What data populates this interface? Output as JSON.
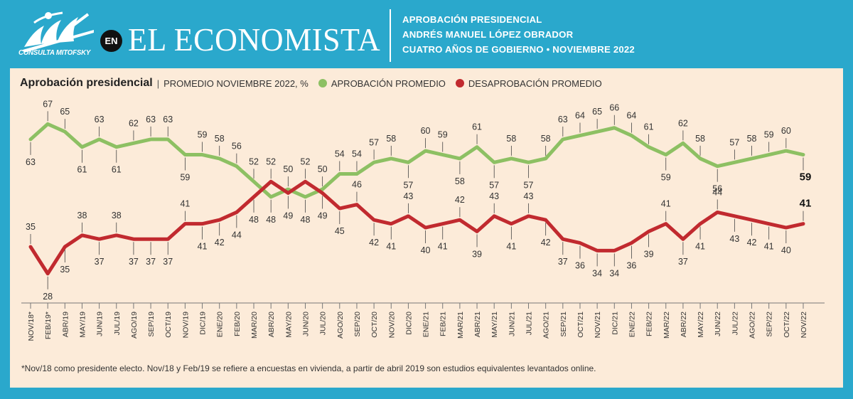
{
  "header": {
    "logo_text": "CONSULTA MITOFSKY",
    "en_badge": "EN",
    "brand": "EL ECONOMISTA",
    "line1": "APROBACIÓN PRESIDENCIAL",
    "line2": "ANDRÉS MANUEL LÓPEZ OBRADOR",
    "line3": "CUATRO AÑOS DE GOBIERNO • NOVIEMBRE 2022"
  },
  "colors": {
    "frame": "#2aa8cc",
    "panel": "#fcebd9",
    "approval": "#8dc063",
    "disapproval": "#c12a2f"
  },
  "chart_data": {
    "type": "line",
    "title": "Aprobación presidencial",
    "subtitle": "PROMEDIO NOVIEMBRE 2022, %",
    "legend_placement": "top-left",
    "grid": false,
    "categories": [
      "NOV/18*",
      "FEB/19*",
      "ABR/19",
      "MAY/19",
      "JUN/19",
      "JUL/19",
      "AGO/19",
      "SEP/19",
      "OCT/19",
      "NOV/19",
      "DIC/19",
      "ENE/20",
      "FEB/20",
      "MAR/20",
      "ABR/20",
      "MAY/20",
      "JUN/20",
      "JUL/20",
      "AGO/20",
      "SEP/20",
      "OCT/20",
      "NOV/20",
      "DIC/20",
      "ENE/21",
      "FEB/21",
      "MAR/21",
      "ABR/21",
      "MAY/21",
      "JUN/21",
      "JUL/21",
      "AGO/21",
      "SEP/21",
      "OCT/21",
      "NOV/21",
      "DIC/21",
      "ENE/22",
      "FEB/22",
      "MAR/22",
      "ABR/22",
      "MAY/22",
      "JUN/22",
      "JUL/22",
      "AGO/22",
      "SEP/22",
      "OCT/22",
      "NOV/22"
    ],
    "series": [
      {
        "name": "APROBACIÓN PROMEDIO",
        "color": "#8dc063",
        "values": [
          63,
          67,
          65,
          61,
          63,
          61,
          62,
          63,
          63,
          59,
          59,
          58,
          56,
          52,
          48,
          50,
          48,
          50,
          54,
          54,
          57,
          58,
          57,
          60,
          59,
          58,
          61,
          57,
          58,
          57,
          58,
          63,
          64,
          65,
          66,
          64,
          61,
          59,
          62,
          58,
          56,
          57,
          58,
          59,
          60,
          59
        ]
      },
      {
        "name": "DESAPROBACIÓN PROMEDIO",
        "color": "#c12a2f",
        "values": [
          35,
          28,
          35,
          38,
          37,
          38,
          37,
          37,
          37,
          41,
          41,
          42,
          44,
          48,
          52,
          49,
          52,
          49,
          45,
          46,
          42,
          41,
          43,
          40,
          41,
          42,
          39,
          43,
          41,
          43,
          42,
          37,
          36,
          34,
          34,
          36,
          39,
          41,
          37,
          41,
          44,
          43,
          42,
          41,
          40,
          41
        ]
      }
    ],
    "ylim": [
      20,
      75
    ]
  },
  "footnote": "*Nov/18 como presidente electo. Nov/18 y Feb/19 se refiere a encuestas en vivienda, a partir de abril 2019 son estudios equivalentes levantados online."
}
